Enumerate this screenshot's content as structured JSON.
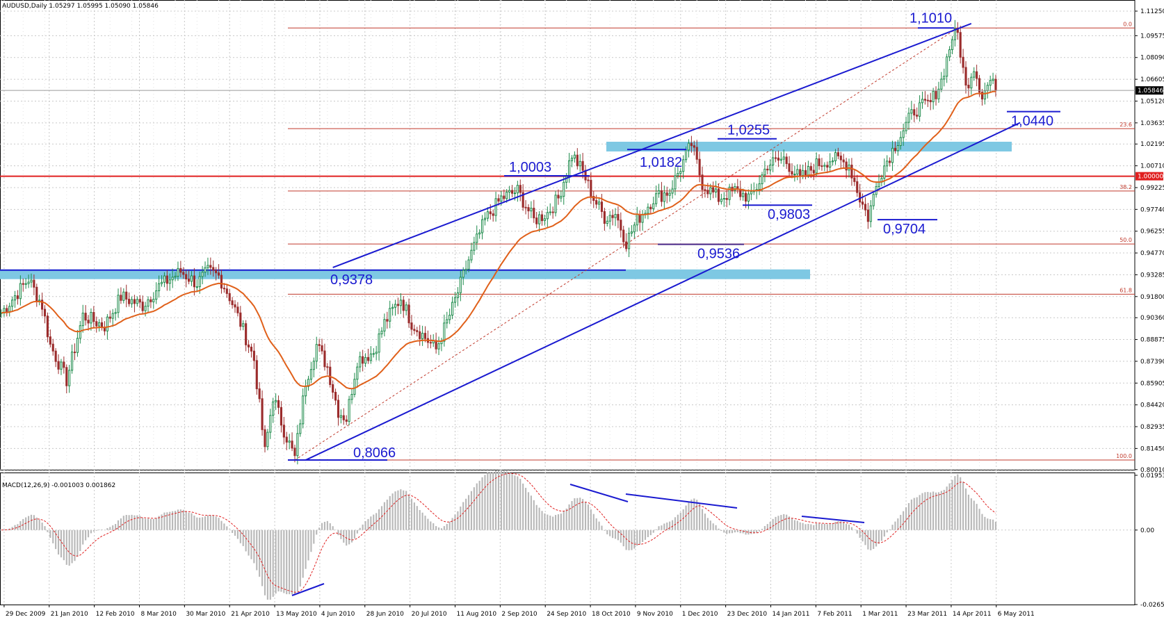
{
  "header": {
    "symbol_line": "AUDUSD,Daily  1.05297 1.05995 1.05090 1.05846"
  },
  "macd_header": "MACD(12,26,9) -0.001003 0.001862",
  "chart_data": [
    {
      "type": "candlestick",
      "symbol": "AUDUSD",
      "timeframe": "Daily",
      "ohlc_last": {
        "open": 1.05297,
        "high": 1.05995,
        "low": 1.0509,
        "close": 1.05846
      },
      "ylim": [
        0.8,
        1.1125
      ],
      "y_ticks": [
        "1.11250",
        "1.09575",
        "1.08090",
        "1.06605",
        "1.05120",
        "1.03635",
        "1.02195",
        "1.00710",
        "0.99225",
        "0.97740",
        "0.96255",
        "0.94770",
        "0.93285",
        "0.91800",
        "0.90360",
        "0.88875",
        "0.87390",
        "0.85905",
        "0.84420",
        "0.82935",
        "0.81450",
        "0.80010"
      ],
      "current_price_label": "1.05846",
      "x_labels": [
        "29 Dec 2009",
        "21 Jan 2010",
        "12 Feb 2010",
        "8 Mar 2010",
        "30 Mar 2010",
        "21 Apr 2010",
        "13 May 2010",
        "4 Jun 2010",
        "28 Jun 2010",
        "20 Jul 2010",
        "11 Aug 2010",
        "2 Sep 2010",
        "24 Sep 2010",
        "18 Oct 2010",
        "9 Nov 2010",
        "1 Dec 2010",
        "23 Dec 2010",
        "14 Jan 2011",
        "7 Feb 2011",
        "1 Mar 2011",
        "23 Mar 2011",
        "14 Apr 2011",
        "6 May 2011"
      ],
      "key_prices": [
        {
          "t": 0,
          "p": 0.907
        },
        {
          "t": 10,
          "p": 0.93
        },
        {
          "t": 15,
          "p": 0.912
        },
        {
          "t": 18,
          "p": 0.885
        },
        {
          "t": 24,
          "p": 0.861
        },
        {
          "t": 30,
          "p": 0.905
        },
        {
          "t": 38,
          "p": 0.898
        },
        {
          "t": 44,
          "p": 0.918
        },
        {
          "t": 52,
          "p": 0.912
        },
        {
          "t": 58,
          "p": 0.925
        },
        {
          "t": 66,
          "p": 0.935
        },
        {
          "t": 72,
          "p": 0.927
        },
        {
          "t": 76,
          "p": 0.935
        },
        {
          "t": 80,
          "p": 0.932
        },
        {
          "t": 84,
          "p": 0.918
        },
        {
          "t": 88,
          "p": 0.9
        },
        {
          "t": 93,
          "p": 0.875
        },
        {
          "t": 97,
          "p": 0.812
        },
        {
          "t": 100,
          "p": 0.85
        },
        {
          "t": 104,
          "p": 0.827
        },
        {
          "t": 108,
          "p": 0.808
        },
        {
          "t": 112,
          "p": 0.86
        },
        {
          "t": 116,
          "p": 0.885
        },
        {
          "t": 120,
          "p": 0.87
        },
        {
          "t": 124,
          "p": 0.84
        },
        {
          "t": 127,
          "p": 0.835
        },
        {
          "t": 131,
          "p": 0.875
        },
        {
          "t": 137,
          "p": 0.88
        },
        {
          "t": 141,
          "p": 0.9
        },
        {
          "t": 147,
          "p": 0.917
        },
        {
          "t": 151,
          "p": 0.9
        },
        {
          "t": 156,
          "p": 0.89
        },
        {
          "t": 160,
          "p": 0.882
        },
        {
          "t": 166,
          "p": 0.91
        },
        {
          "t": 172,
          "p": 0.943
        },
        {
          "t": 178,
          "p": 0.97
        },
        {
          "t": 184,
          "p": 0.985
        },
        {
          "t": 190,
          "p": 0.99
        },
        {
          "t": 196,
          "p": 0.97
        },
        {
          "t": 201,
          "p": 0.975
        },
        {
          "t": 205,
          "p": 0.985
        },
        {
          "t": 210,
          "p": 1.015
        },
        {
          "t": 214,
          "p": 1.003
        },
        {
          "t": 218,
          "p": 0.985
        },
        {
          "t": 222,
          "p": 0.972
        },
        {
          "t": 226,
          "p": 0.975
        },
        {
          "t": 230,
          "p": 0.955
        },
        {
          "t": 234,
          "p": 0.97
        },
        {
          "t": 240,
          "p": 0.985
        },
        {
          "t": 246,
          "p": 0.99
        },
        {
          "t": 251,
          "p": 1.01
        },
        {
          "t": 254,
          "p": 1.022
        },
        {
          "t": 258,
          "p": 0.995
        },
        {
          "t": 264,
          "p": 0.985
        },
        {
          "t": 270,
          "p": 0.99
        },
        {
          "t": 276,
          "p": 0.985
        },
        {
          "t": 282,
          "p": 1.008
        },
        {
          "t": 288,
          "p": 1.012
        },
        {
          "t": 294,
          "p": 0.998
        },
        {
          "t": 300,
          "p": 1.008
        },
        {
          "t": 306,
          "p": 1.012
        },
        {
          "t": 312,
          "p": 1.008
        },
        {
          "t": 316,
          "p": 0.985
        },
        {
          "t": 319,
          "p": 0.972
        },
        {
          "t": 323,
          "p": 1.0
        },
        {
          "t": 330,
          "p": 1.025
        },
        {
          "t": 336,
          "p": 1.045
        },
        {
          "t": 342,
          "p": 1.05
        },
        {
          "t": 346,
          "p": 1.065
        },
        {
          "t": 350,
          "p": 1.095
        },
        {
          "t": 352,
          "p": 1.097
        },
        {
          "t": 355,
          "p": 1.06
        },
        {
          "t": 358,
          "p": 1.075
        },
        {
          "t": 361,
          "p": 1.055
        },
        {
          "t": 364,
          "p": 1.065
        },
        {
          "t": 366,
          "p": 1.0584
        }
      ],
      "moving_average": "orange",
      "fibonacci_levels": [
        {
          "label": "0.0",
          "price": 1.101
        },
        {
          "label": "23.6",
          "price": 1.0324
        },
        {
          "label": "38.2",
          "price": 0.9899
        },
        {
          "label": "50.0",
          "price": 0.9538
        },
        {
          "label": "61.8",
          "price": 0.9196
        },
        {
          "label": "100.0",
          "price": 0.8066
        }
      ],
      "parity_level": {
        "label": "1.00000",
        "price": 1.0
      },
      "support_zones": [
        {
          "from_date": "29 Dec 2009",
          "to_date": "23 Dec 2010",
          "price_low": 0.9325,
          "price_high": 0.9365
        },
        {
          "from_date": "18 Oct 2010",
          "to_date": "6 May 2011",
          "price_low": 1.019,
          "price_high": 1.0235
        }
      ],
      "annotations": [
        {
          "text": "1,1010",
          "price": 1.101
        },
        {
          "text": "1,0440",
          "price": 1.044
        },
        {
          "text": "1,0255",
          "price": 1.0255
        },
        {
          "text": "1,0182",
          "price": 1.0182
        },
        {
          "text": "1,0003",
          "price": 1.0003
        },
        {
          "text": "0,9803",
          "price": 0.9803
        },
        {
          "text": "0,9704",
          "price": 0.9704
        },
        {
          "text": "0,9536",
          "price": 0.9536
        },
        {
          "text": "0,9378",
          "price": 0.9378
        },
        {
          "text": "0,8066",
          "price": 0.8066
        }
      ],
      "trend_lines": "upper and lower channel lines (blue)"
    },
    {
      "type": "bar",
      "title": "MACD(12,26,9) -0.001003 0.001862",
      "ylim": [
        -0.02658,
        0.019537
      ],
      "y_ticks": [
        "0.019537",
        "0.00",
        "-0.02658"
      ],
      "macd_last": -0.001003,
      "signal_last": 0.001862,
      "signal_line": "red dashed"
    }
  ],
  "colors": {
    "up_candle": "#1c8a4a",
    "down_candle": "#9b2c2c",
    "ma": "#e0601a",
    "trend": "#1a1ad0",
    "zone": "#7ec8e3",
    "fib": "#c0392b",
    "parity": "#e02020",
    "macd_hist": "#b8b8b8",
    "macd_signal": "#e02020"
  }
}
